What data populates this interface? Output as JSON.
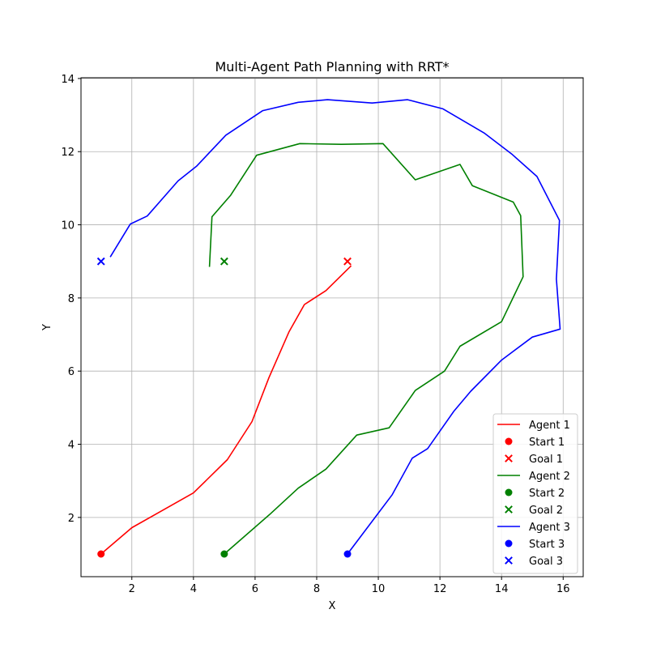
{
  "chart_data": {
    "type": "line",
    "title": "Multi-Agent Path Planning with RRT*",
    "xlabel": "X",
    "ylabel": "Y",
    "xlim": [
      0.35,
      16.65
    ],
    "ylim": [
      0.38,
      14.02
    ],
    "xticks": [
      2,
      4,
      6,
      8,
      10,
      12,
      14,
      16
    ],
    "yticks": [
      2,
      4,
      6,
      8,
      10,
      12,
      14
    ],
    "grid": true,
    "legend_position": "lower-right",
    "series": [
      {
        "name": "Agent 1",
        "color": "#ff0000",
        "points": [
          [
            1,
            1
          ],
          [
            2,
            1.72
          ],
          [
            4,
            2.67
          ],
          [
            5.1,
            3.58
          ],
          [
            5.9,
            4.62
          ],
          [
            6.45,
            5.82
          ],
          [
            7.1,
            7.07
          ],
          [
            7.6,
            7.82
          ],
          [
            8.3,
            8.2
          ],
          [
            9.12,
            8.88
          ]
        ]
      },
      {
        "name": "Agent 2",
        "color": "#008000",
        "points": [
          [
            5,
            1
          ],
          [
            6.5,
            2.1
          ],
          [
            7.4,
            2.8
          ],
          [
            8.3,
            3.32
          ],
          [
            9.3,
            4.25
          ],
          [
            10.35,
            4.45
          ],
          [
            11.2,
            5.47
          ],
          [
            12.15,
            6
          ],
          [
            12.65,
            6.68
          ],
          [
            14,
            7.35
          ],
          [
            14.7,
            8.58
          ],
          [
            14.62,
            10.25
          ],
          [
            14.38,
            10.62
          ],
          [
            13.05,
            11.07
          ],
          [
            12.65,
            11.65
          ],
          [
            11.2,
            11.23
          ],
          [
            10.15,
            12.22
          ],
          [
            8.8,
            12.2
          ],
          [
            7.45,
            12.22
          ],
          [
            6.05,
            11.9
          ],
          [
            5.2,
            10.8
          ],
          [
            4.6,
            10.22
          ],
          [
            4.52,
            8.85
          ]
        ]
      },
      {
        "name": "Agent 3",
        "color": "#0000ff",
        "points": [
          [
            9,
            1
          ],
          [
            10.45,
            2.62
          ],
          [
            11.1,
            3.62
          ],
          [
            11.6,
            3.88
          ],
          [
            12.45,
            4.9
          ],
          [
            13,
            5.45
          ],
          [
            14,
            6.3
          ],
          [
            15,
            6.93
          ],
          [
            15.9,
            7.15
          ],
          [
            15.78,
            8.52
          ],
          [
            15.88,
            10.12
          ],
          [
            15.15,
            11.32
          ],
          [
            14.35,
            11.92
          ],
          [
            13.45,
            12.5
          ],
          [
            12.1,
            13.17
          ],
          [
            10.95,
            13.42
          ],
          [
            9.8,
            13.33
          ],
          [
            8.35,
            13.42
          ],
          [
            7.4,
            13.35
          ],
          [
            6.25,
            13.12
          ],
          [
            5.05,
            12.45
          ],
          [
            4.1,
            11.6
          ],
          [
            3.5,
            11.2
          ],
          [
            2.5,
            10.24
          ],
          [
            1.95,
            10.02
          ],
          [
            1.3,
            9.12
          ]
        ]
      }
    ],
    "markers": [
      {
        "name": "Start 1",
        "kind": "start",
        "color": "#ff0000",
        "x": 1,
        "y": 1
      },
      {
        "name": "Goal 1",
        "kind": "goal",
        "color": "#ff0000",
        "x": 9,
        "y": 9
      },
      {
        "name": "Start 2",
        "kind": "start",
        "color": "#008000",
        "x": 5,
        "y": 1
      },
      {
        "name": "Goal 2",
        "kind": "goal",
        "color": "#008000",
        "x": 5,
        "y": 9
      },
      {
        "name": "Start 3",
        "kind": "start",
        "color": "#0000ff",
        "x": 9,
        "y": 1
      },
      {
        "name": "Goal 3",
        "kind": "goal",
        "color": "#0000ff",
        "x": 1,
        "y": 9
      }
    ],
    "legend": [
      {
        "label": "Agent 1",
        "kind": "line",
        "color": "#ff0000"
      },
      {
        "label": "Start 1",
        "kind": "start",
        "color": "#ff0000"
      },
      {
        "label": "Goal 1",
        "kind": "goal",
        "color": "#ff0000"
      },
      {
        "label": "Agent 2",
        "kind": "line",
        "color": "#008000"
      },
      {
        "label": "Start 2",
        "kind": "start",
        "color": "#008000"
      },
      {
        "label": "Goal 2",
        "kind": "goal",
        "color": "#008000"
      },
      {
        "label": "Agent 3",
        "kind": "line",
        "color": "#0000ff"
      },
      {
        "label": "Start 3",
        "kind": "start",
        "color": "#0000ff"
      },
      {
        "label": "Goal 3",
        "kind": "goal",
        "color": "#0000ff"
      }
    ]
  }
}
